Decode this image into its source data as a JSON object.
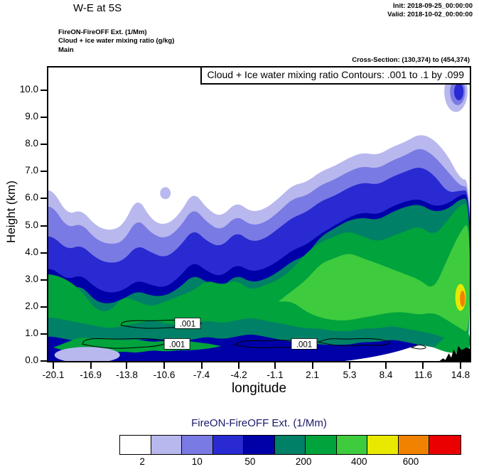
{
  "header": {
    "title": "W-E at 5S",
    "init": "Init: 2018-09-25_00:00:00",
    "valid": "Valid: 2018-10-02_00:00:00",
    "line1": "FireON-FireOFF Ext.  (1/Mm)",
    "line2": "Cloud + ice water mixing ratio  (g/kg)",
    "line3": "Main",
    "cross_section": "Cross-Section: (130,374) to (454,374)"
  },
  "chart_data": {
    "type": "filled-contour-cross-section",
    "title": "W-E at 5S",
    "xlabel": "longitude",
    "ylabel": "Height (km)",
    "contour_box": "Cloud + Ice water mixing ratio Contours: .001 to .1 by .099",
    "contour_levels": [
      0.001,
      0.1
    ],
    "xlim": [
      -20.53,
      15.59
    ],
    "ylim": [
      0,
      10.84
    ],
    "x_ticks": [
      "-20.1",
      "-16.9",
      "-13.8",
      "-10.6",
      "-7.4",
      "-4.2",
      "-1.1",
      "2.1",
      "5.3",
      "8.4",
      "11.6",
      "14.8"
    ],
    "y_ticks": [
      "0.0",
      "1.0",
      "2.0",
      "3.0",
      "4.0",
      "5.0",
      "6.0",
      "7.0",
      "8.0",
      "9.0",
      "10.0"
    ],
    "colorbar": {
      "title": "FireON-FireOFF Ext.  (1/Mm)",
      "labels": [
        "2",
        "10",
        "50",
        "200",
        "400",
        "600"
      ],
      "label_positions_pct": [
        6.7,
        22.8,
        38.4,
        54.1,
        70.4,
        85.6
      ],
      "colors": [
        "#ffffff",
        "#b8b8ee",
        "#7a7ae4",
        "#2a2ad2",
        "#0000a8",
        "#008066",
        "#00a33c",
        "#3ecb3e",
        "#e9e900",
        "#f08200",
        "#ea0000"
      ]
    },
    "colors": {
      "white": "#ffffff",
      "lavender": "#b8b8ee",
      "periwinkle": "#7a7ae4",
      "blue": "#2a2ad2",
      "darkblue": "#0000a8",
      "teal": "#008066",
      "green": "#00a33c",
      "bright": "#3ecb3e",
      "yellow": "#e9e900",
      "orange": "#f08200",
      "red": "#ea0000",
      "black": "#000000"
    },
    "field": {
      "x": [
        -20.1,
        -18.9,
        -17.7,
        -16.5,
        -15.3,
        -14.1,
        -12.9,
        -11.7,
        -10.5,
        -9.3,
        -8.1,
        -6.9,
        -5.7,
        -4.4,
        -3.2,
        -2.0,
        -0.8,
        0.4,
        1.6,
        2.8,
        4.0,
        5.2,
        6.4,
        7.7,
        8.9,
        10.1,
        11.3,
        12.5,
        13.7,
        14.8
      ],
      "layers": [
        {
          "name": "level-1-lavender",
          "color": "lavender",
          "top": [
            6.3,
            5.4,
            5.6,
            5.0,
            4.8,
            5.0,
            6.1,
            5.2,
            5.0,
            5.4,
            6.3,
            5.6,
            5.3,
            5.9,
            5.5,
            5.6,
            6.0,
            6.5,
            6.6,
            7.0,
            7.2,
            7.5,
            7.7,
            7.6,
            7.9,
            8.1,
            8.4,
            8.2,
            7.6,
            6.7
          ]
        },
        {
          "name": "level-2-periwinkle",
          "color": "periwinkle",
          "top": [
            5.7,
            4.9,
            5.1,
            4.5,
            4.3,
            4.4,
            5.3,
            4.7,
            4.5,
            4.9,
            5.7,
            5.1,
            4.8,
            5.4,
            5.0,
            5.1,
            5.5,
            6.0,
            6.1,
            6.5,
            6.7,
            7.0,
            7.2,
            7.1,
            7.4,
            7.6,
            7.9,
            7.6,
            7.0,
            6.45
          ]
        },
        {
          "name": "level-3-blue",
          "color": "blue",
          "top": [
            4.6,
            4.1,
            4.3,
            3.8,
            3.6,
            3.7,
            4.3,
            4.0,
            3.8,
            4.2,
            4.9,
            4.4,
            4.2,
            4.8,
            4.4,
            4.5,
            4.9,
            5.3,
            5.5,
            5.9,
            6.1,
            6.4,
            6.6,
            6.5,
            6.8,
            7.0,
            7.2,
            6.9,
            6.2,
            6.3
          ]
        },
        {
          "name": "level-4-darkblue",
          "color": "darkblue",
          "top": [
            3.4,
            3.0,
            3.2,
            2.7,
            2.5,
            2.6,
            3.0,
            2.8,
            2.7,
            3.1,
            3.7,
            3.3,
            3.1,
            3.6,
            3.3,
            3.4,
            3.7,
            4.1,
            4.3,
            4.7,
            5.0,
            5.3,
            5.5,
            5.4,
            5.7,
            5.9,
            6.0,
            5.7,
            5.8,
            6.15
          ]
        },
        {
          "name": "level-5-teal",
          "color": "teal",
          "bottom": [
            0.9,
            0.8,
            0.7,
            0.6,
            0.6,
            0.7,
            0.8,
            0.8,
            0.8,
            0.7,
            0.8,
            0.9,
            0.8,
            0.9,
            1.0,
            0.9,
            0.8,
            0.7,
            0.7,
            0.6,
            0.6,
            0.6,
            0.7,
            0.7,
            0.8,
            0.7,
            0.6,
            0.5,
            0.4,
            0.3
          ],
          "top": [
            2.9,
            2.6,
            2.8,
            2.2,
            2.1,
            2.3,
            2.6,
            2.4,
            2.4,
            2.7,
            3.2,
            2.9,
            2.7,
            3.2,
            2.9,
            3.0,
            3.3,
            3.7,
            3.9,
            4.6,
            4.9,
            5.2,
            5.3,
            5.2,
            5.5,
            5.7,
            5.8,
            5.5,
            5.6,
            6.0
          ]
        },
        {
          "name": "level-6-green",
          "color": "green",
          "bottom": [
            1.6,
            1.5,
            1.4,
            1.3,
            1.2,
            1.3,
            1.4,
            1.5,
            1.4,
            1.3,
            1.4,
            1.5,
            1.4,
            1.5,
            1.6,
            1.5,
            1.4,
            1.3,
            1.2,
            1.2,
            1.1,
            1.1,
            1.2,
            1.2,
            1.3,
            1.2,
            1.1,
            1.0,
            0.8,
            0.7
          ],
          "top": [
            3.2,
            3.0,
            2.6,
            1.9,
            1.8,
            2.4,
            2.2,
            2.0,
            2.2,
            2.4,
            2.6,
            3.0,
            2.8,
            3.0,
            2.6,
            2.8,
            3.0,
            3.4,
            4.0,
            4.4,
            4.6,
            4.8,
            4.6,
            4.4,
            4.6,
            4.8,
            5.0,
            4.6,
            5.2,
            5.8
          ]
        },
        {
          "name": "green-low-left",
          "color": "green",
          "x": [
            -20.1,
            -18.9,
            -17.7,
            -16.5,
            -15.3,
            -14.1,
            -12.9,
            -11.7,
            -10.5,
            -9.3,
            -8.1,
            -6.9,
            -5.7
          ],
          "bottom": [
            0.5,
            0.35,
            0.3,
            0.35,
            0.3,
            0.35,
            0.3,
            0.4,
            0.35,
            0.4,
            0.4,
            0.45,
            0.55
          ],
          "top": [
            0.5,
            0.7,
            0.9,
            0.8,
            0.85,
            0.75,
            0.8,
            0.7,
            0.75,
            0.8,
            0.7,
            0.65,
            0.55
          ]
        },
        {
          "name": "green-low-right",
          "color": "green",
          "x": [
            12.5,
            13.7,
            14.8,
            15.6
          ],
          "bottom": [
            0.5,
            0.3,
            0.3,
            0.35
          ],
          "top": [
            0.5,
            1.0,
            1.1,
            1.1
          ]
        },
        {
          "name": "level-7-bright-green",
          "color": "bright",
          "x": [
            -0.8,
            0.4,
            1.6,
            2.8,
            4.0,
            5.2,
            6.4,
            7.7,
            8.9,
            10.1,
            11.3,
            12.5,
            13.7,
            14.8,
            15.6
          ],
          "bottom": [
            2.2,
            2.2,
            1.8,
            1.6,
            1.5,
            1.5,
            1.6,
            1.7,
            1.8,
            1.8,
            1.7,
            1.8,
            1.5,
            1.2,
            1.0
          ],
          "top": [
            2.2,
            2.6,
            3.0,
            3.6,
            3.8,
            4.0,
            3.8,
            3.6,
            3.4,
            3.2,
            3.0,
            2.6,
            3.8,
            4.8,
            5.2
          ]
        }
      ]
    },
    "blobs": [
      {
        "name": "bottom-left-light-patch",
        "color": "lavender",
        "x": -17.2,
        "y": 0.22,
        "rx": 2.8,
        "ry": 0.3
      },
      {
        "name": "detached-lavender-spot",
        "color": "lavender",
        "x": -10.5,
        "y": 6.2,
        "rx": 0.45,
        "ry": 0.22
      },
      {
        "name": "top-right-lavender-blob",
        "color": "lavender",
        "x": 14.4,
        "y": 9.95,
        "rx": 1.0,
        "ry": 0.75
      },
      {
        "name": "top-right-periwinkle-blob",
        "color": "periwinkle",
        "x": 14.55,
        "y": 9.95,
        "rx": 0.65,
        "ry": 0.5
      },
      {
        "name": "top-right-blue-blob",
        "color": "blue",
        "x": 14.65,
        "y": 9.95,
        "rx": 0.4,
        "ry": 0.32
      },
      {
        "name": "right-edge-yellow-max",
        "color": "yellow",
        "x": 14.8,
        "y": 2.35,
        "rx": 0.45,
        "ry": 0.5
      },
      {
        "name": "right-edge-orange-max",
        "color": "orange",
        "x": 14.97,
        "y": 2.3,
        "rx": 0.22,
        "ry": 0.3
      }
    ],
    "terrain": [
      [
        13.0,
        0
      ],
      [
        13.3,
        0.1
      ],
      [
        13.5,
        0.04
      ],
      [
        13.8,
        0.28
      ],
      [
        14.0,
        0.12
      ],
      [
        14.2,
        0.42
      ],
      [
        14.45,
        0.25
      ],
      [
        14.6,
        0.55
      ],
      [
        14.9,
        0.4
      ],
      [
        15.3,
        0.5
      ],
      [
        15.6,
        0.45
      ],
      [
        15.6,
        0
      ]
    ],
    "contour_lines": [
      [
        [
          -17.6,
          0.62
        ],
        [
          -16.2,
          0.5
        ],
        [
          -14.5,
          0.46
        ],
        [
          -12.8,
          0.5
        ],
        [
          -11.2,
          0.55
        ],
        [
          -10.2,
          0.68
        ],
        [
          -11.0,
          0.8
        ],
        [
          -12.8,
          0.84
        ],
        [
          -14.8,
          0.8
        ],
        [
          -16.6,
          0.84
        ],
        [
          -17.5,
          0.76
        ]
      ],
      [
        [
          -14.3,
          1.32
        ],
        [
          -13.0,
          1.22
        ],
        [
          -11.5,
          1.2
        ],
        [
          -9.8,
          1.24
        ],
        [
          -8.2,
          1.28
        ],
        [
          -7.2,
          1.38
        ],
        [
          -8.0,
          1.5
        ],
        [
          -9.8,
          1.52
        ],
        [
          -11.6,
          1.48
        ],
        [
          -13.2,
          1.5
        ],
        [
          -14.2,
          1.44
        ]
      ],
      [
        [
          -4.6,
          0.6
        ],
        [
          -3.4,
          0.5
        ],
        [
          -2.0,
          0.48
        ],
        [
          -0.6,
          0.52
        ],
        [
          0.8,
          0.5
        ],
        [
          1.8,
          0.62
        ],
        [
          0.8,
          0.74
        ],
        [
          -0.8,
          0.78
        ],
        [
          -2.4,
          0.74
        ],
        [
          -3.8,
          0.76
        ]
      ],
      [
        [
          2.6,
          0.7
        ],
        [
          3.8,
          0.58
        ],
        [
          5.2,
          0.55
        ],
        [
          6.6,
          0.6
        ],
        [
          7.8,
          0.56
        ],
        [
          9.0,
          0.66
        ],
        [
          8.0,
          0.8
        ],
        [
          6.6,
          0.84
        ],
        [
          5.0,
          0.8
        ],
        [
          3.6,
          0.84
        ]
      ],
      [
        [
          10.6,
          0.5
        ],
        [
          11.3,
          0.42
        ],
        [
          12.0,
          0.5
        ],
        [
          11.3,
          0.62
        ]
      ]
    ],
    "contour_labels": [
      {
        "x": -8.6,
        "y": 1.38,
        "text": ".001"
      },
      {
        "x": -9.5,
        "y": 0.62,
        "text": ".001"
      },
      {
        "x": 1.4,
        "y": 0.62,
        "text": ".001"
      }
    ]
  }
}
